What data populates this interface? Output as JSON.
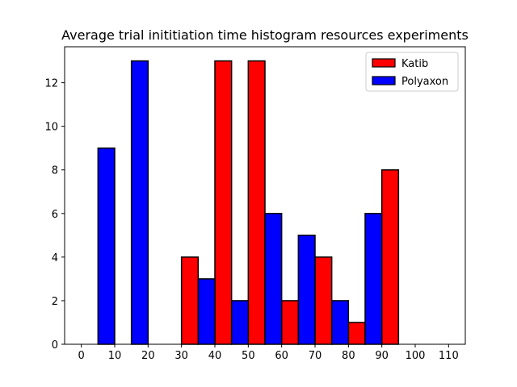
{
  "chart_data": {
    "type": "bar",
    "title": "Average trial inititiation time histogram resources experiments",
    "xlabel": "",
    "ylabel": "",
    "xlim": [
      -5,
      115
    ],
    "ylim": [
      0,
      13.65
    ],
    "xticks": [
      0,
      10,
      20,
      30,
      40,
      50,
      60,
      70,
      80,
      90,
      100,
      110
    ],
    "yticks": [
      0,
      2,
      4,
      6,
      8,
      10,
      12
    ],
    "bin_width": 10,
    "bins": [
      [
        0,
        10
      ],
      [
        10,
        20
      ],
      [
        20,
        30
      ],
      [
        30,
        40
      ],
      [
        40,
        50
      ],
      [
        50,
        60
      ],
      [
        60,
        70
      ],
      [
        70,
        80
      ],
      [
        80,
        90
      ],
      [
        90,
        100
      ],
      [
        100,
        110
      ]
    ],
    "legend_position": "upper right",
    "grid": false,
    "series": [
      {
        "name": "Katib",
        "color": "#ff0000",
        "values": [
          0,
          0,
          0,
          4,
          13,
          13,
          2,
          4,
          1,
          8,
          0
        ]
      },
      {
        "name": "Polyaxon",
        "color": "#0000ff",
        "values": [
          9,
          13,
          0,
          3,
          2,
          6,
          5,
          2,
          6,
          0,
          0
        ]
      }
    ]
  }
}
